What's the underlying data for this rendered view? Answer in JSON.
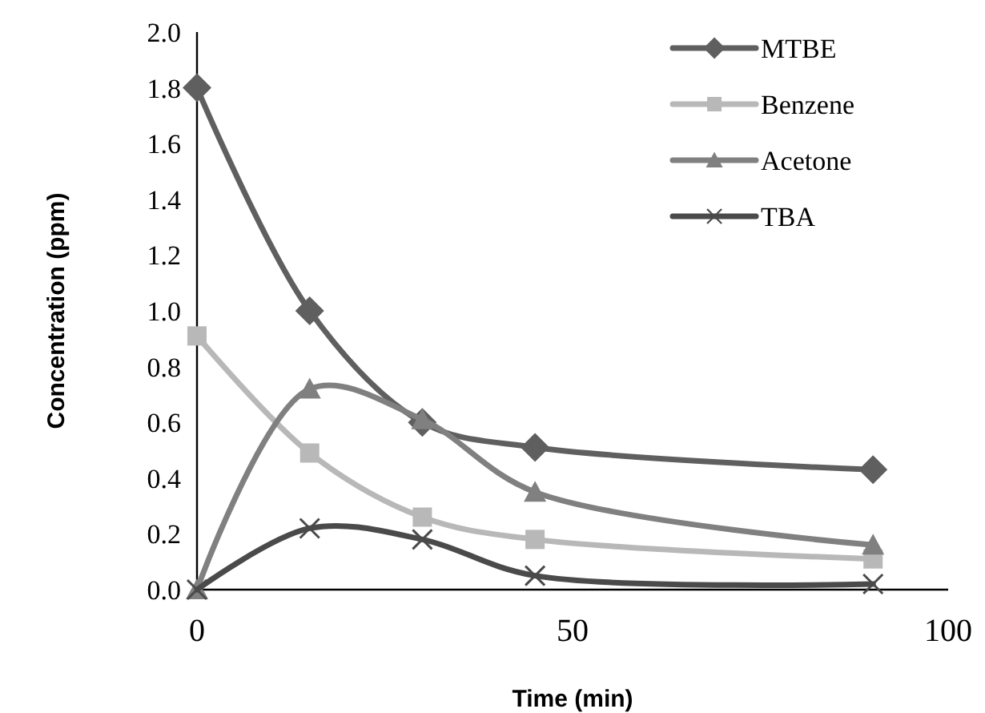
{
  "chart_data": {
    "type": "line",
    "xlabel": "Time (min)",
    "ylabel": "Concentration (ppm)",
    "x": [
      0,
      15,
      30,
      45,
      90
    ],
    "xlim": [
      0,
      100
    ],
    "xticks": [
      0,
      50,
      100
    ],
    "ylim": [
      0,
      2
    ],
    "yticks": [
      {
        "value": 0,
        "label": "0.0"
      },
      {
        "value": 0.2,
        "label": "0.2"
      },
      {
        "value": 0.4,
        "label": "0.4"
      },
      {
        "value": 0.6,
        "label": "0.6"
      },
      {
        "value": 0.8,
        "label": "0.8"
      },
      {
        "value": 1,
        "label": "1.0"
      },
      {
        "value": 1.2,
        "label": "1.2"
      },
      {
        "value": 1.4,
        "label": "1.4"
      },
      {
        "value": 1.6,
        "label": "1.6"
      },
      {
        "value": 1.8,
        "label": "1.8"
      },
      {
        "value": 2,
        "label": "2.0"
      }
    ],
    "grid": false,
    "legend": "top right",
    "series": [
      {
        "name": "MTBE",
        "color": "#5f5f5f",
        "marker": "diamond",
        "values": [
          1.8,
          1.0,
          0.6,
          0.51,
          0.43
        ]
      },
      {
        "name": "Benzene",
        "color": "#b8b8b8",
        "marker": "square",
        "values": [
          0.91,
          0.49,
          0.26,
          0.18,
          0.11
        ]
      },
      {
        "name": "Acetone",
        "color": "#808080",
        "marker": "triangle",
        "values": [
          0,
          0.72,
          0.61,
          0.35,
          0.16
        ]
      },
      {
        "name": "TBA",
        "color": "#4a4a4a",
        "marker": "cross",
        "values": [
          0,
          0.22,
          0.18,
          0.05,
          0.02
        ]
      }
    ]
  }
}
